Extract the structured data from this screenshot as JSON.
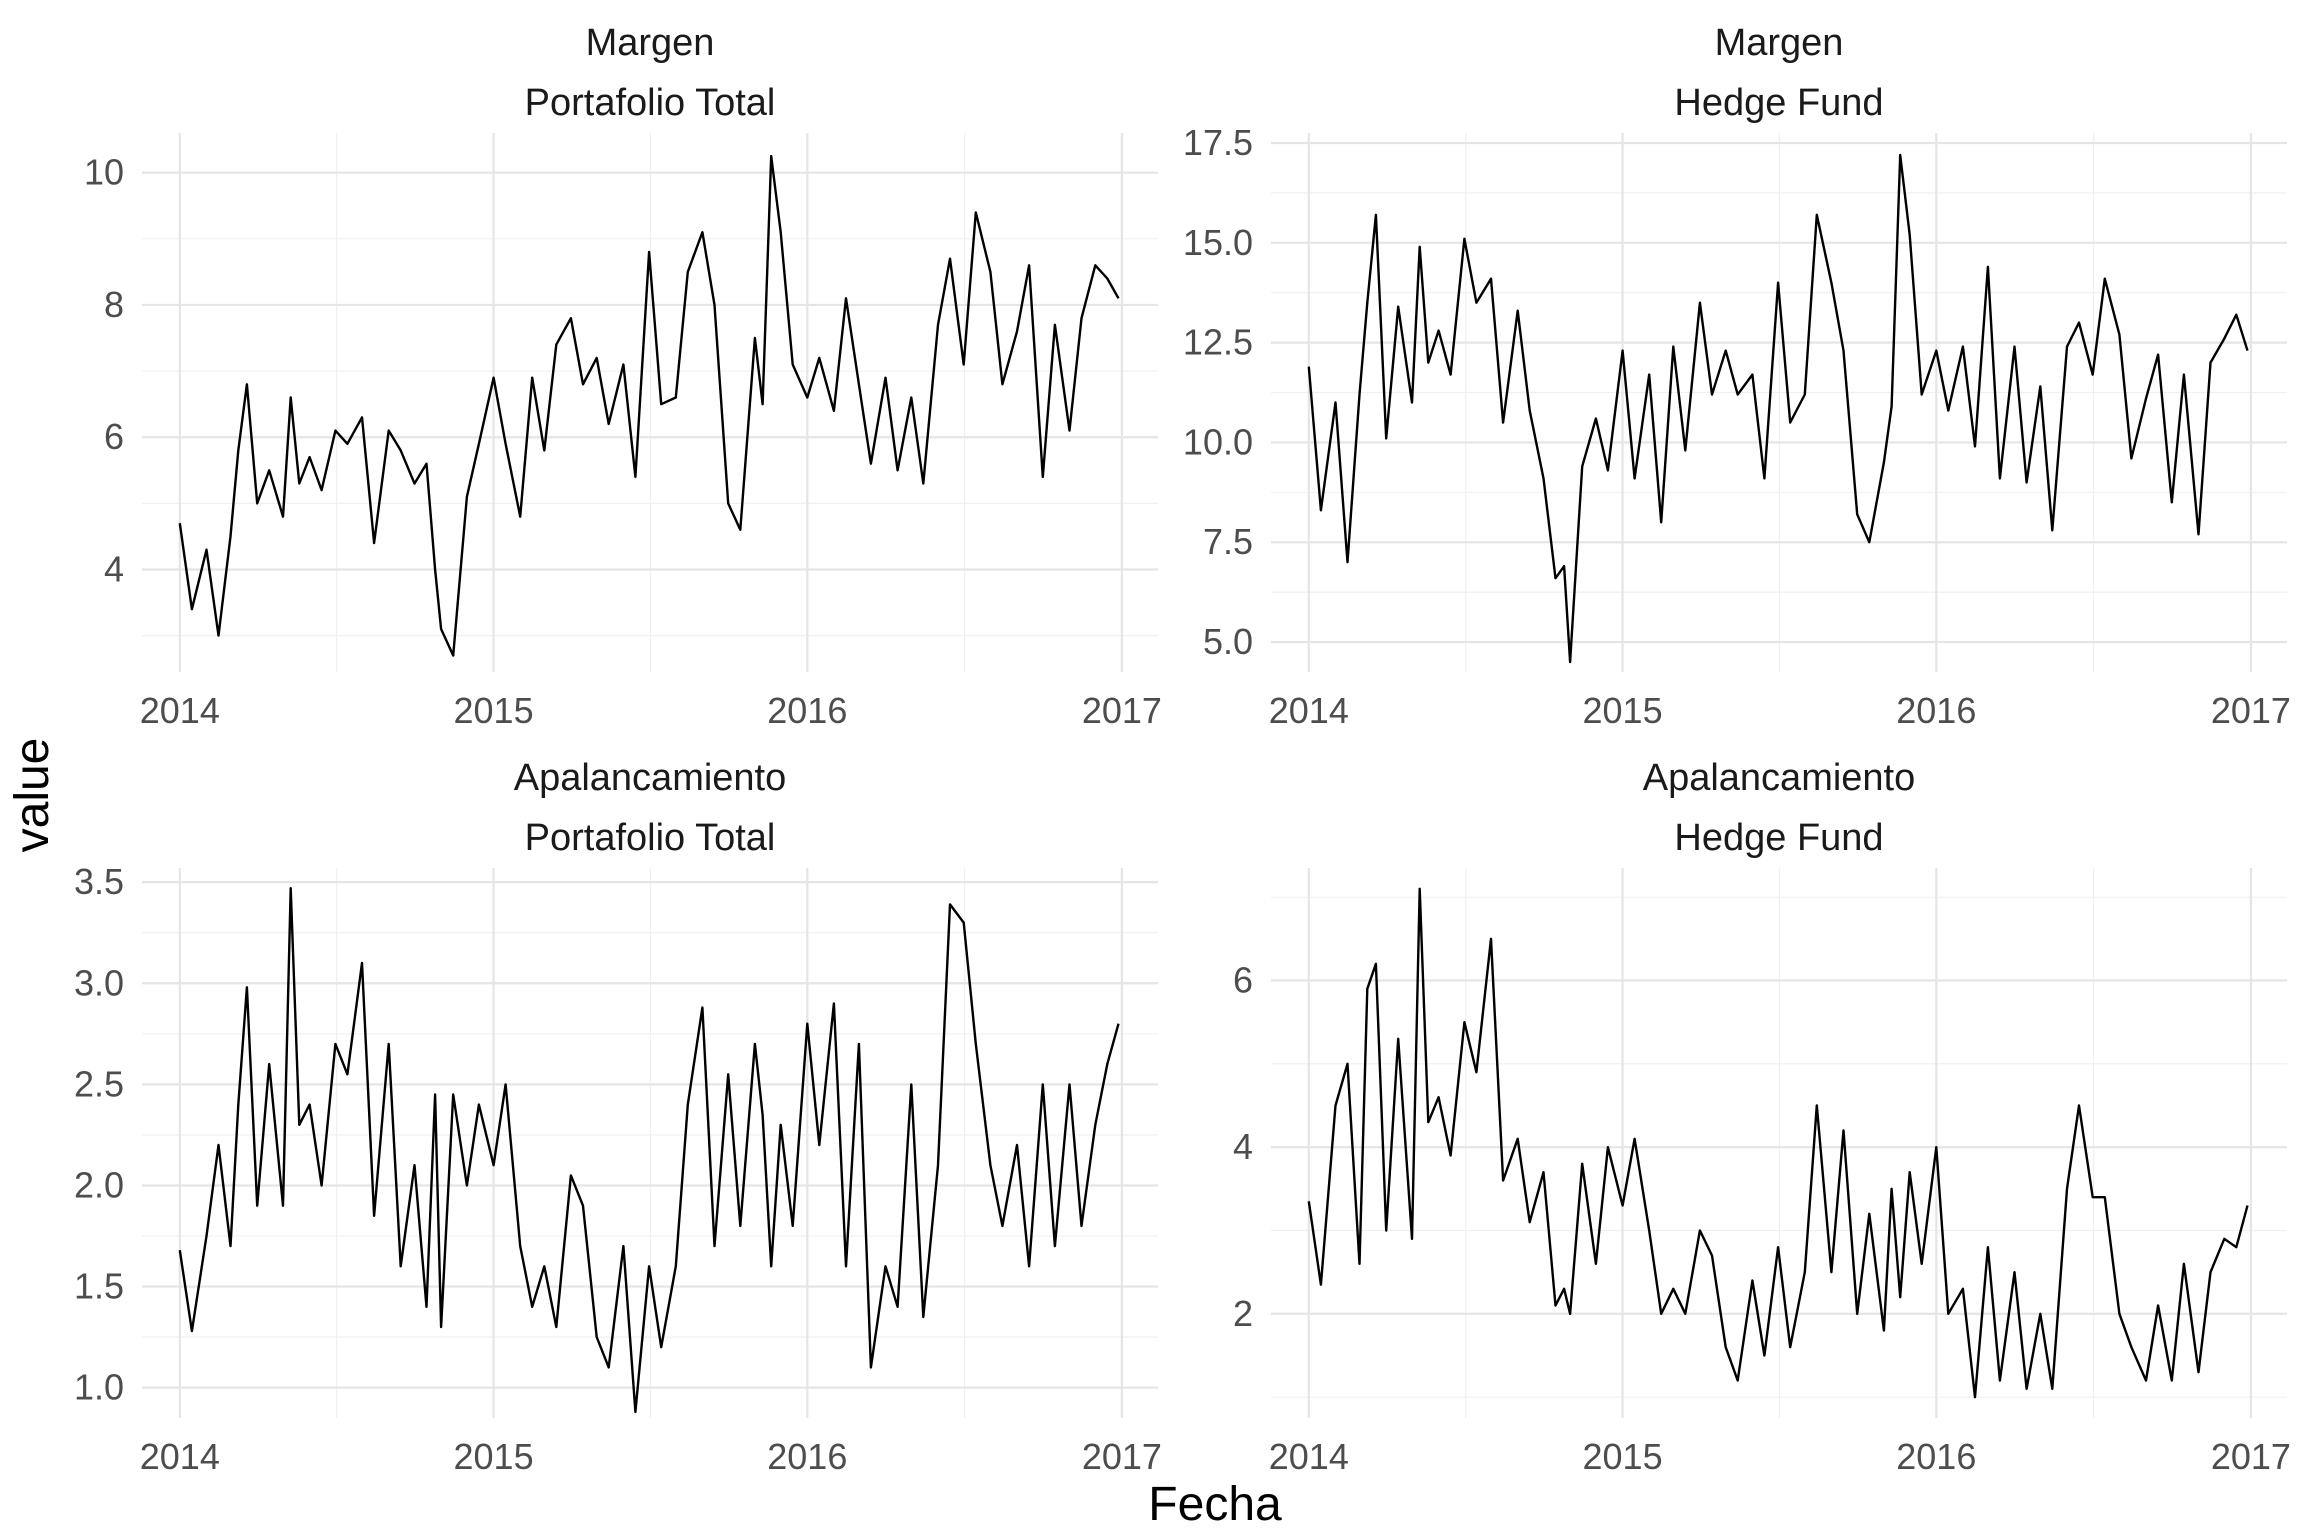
{
  "chart_data": {
    "type": "line",
    "xlabel": "Fecha",
    "ylabel": "value",
    "grid": true,
    "panels": [
      {
        "strip": [
          "Margen",
          "Portafolio Total"
        ],
        "xlim": [
          "2013-11-18",
          "2017-02-12"
        ],
        "ylim": [
          2.45,
          10.6
        ],
        "x_ticks": [
          "2014",
          "2015",
          "2016",
          "2017"
        ],
        "y_ticks": [
          4,
          6,
          8,
          10
        ],
        "y_tick_labels": [
          "4",
          "6",
          "8",
          "10"
        ],
        "series": [
          {
            "x": [
              "2014-01-01",
              "2014-01-15",
              "2014-02-01",
              "2014-02-15",
              "2014-03-01",
              "2014-03-10",
              "2014-03-20",
              "2014-04-01",
              "2014-04-15",
              "2014-05-01",
              "2014-05-10",
              "2014-05-20",
              "2014-06-01",
              "2014-06-15",
              "2014-07-01",
              "2014-07-15",
              "2014-08-01",
              "2014-08-15",
              "2014-09-01",
              "2014-09-15",
              "2014-10-01",
              "2014-10-15",
              "2014-10-25",
              "2014-11-01",
              "2014-11-15",
              "2014-12-01",
              "2014-12-15",
              "2015-01-01",
              "2015-01-15",
              "2015-02-01",
              "2015-02-15",
              "2015-03-01",
              "2015-03-15",
              "2015-04-01",
              "2015-04-15",
              "2015-05-01",
              "2015-05-15",
              "2015-06-01",
              "2015-06-15",
              "2015-07-01",
              "2015-07-15",
              "2015-08-01",
              "2015-08-15",
              "2015-09-01",
              "2015-09-15",
              "2015-10-01",
              "2015-10-15",
              "2015-11-01",
              "2015-11-10",
              "2015-11-20",
              "2015-12-01",
              "2015-12-15",
              "2016-01-01",
              "2016-01-15",
              "2016-02-01",
              "2016-02-15",
              "2016-03-01",
              "2016-03-15",
              "2016-04-01",
              "2016-04-15",
              "2016-05-01",
              "2016-05-15",
              "2016-06-01",
              "2016-06-15",
              "2016-07-01",
              "2016-07-15",
              "2016-08-01",
              "2016-08-15",
              "2016-09-01",
              "2016-09-15",
              "2016-10-01",
              "2016-10-15",
              "2016-11-01",
              "2016-11-15",
              "2016-12-01",
              "2016-12-15",
              "2016-12-28"
            ],
            "y": [
              4.7,
              3.4,
              4.3,
              3.0,
              4.5,
              5.8,
              6.8,
              5.0,
              5.5,
              4.8,
              6.6,
              5.3,
              5.7,
              5.2,
              6.1,
              5.9,
              6.3,
              4.4,
              6.1,
              5.8,
              5.3,
              5.6,
              4.0,
              3.1,
              2.7,
              5.1,
              5.9,
              6.9,
              5.9,
              4.8,
              6.9,
              5.8,
              7.4,
              7.8,
              6.8,
              7.2,
              6.2,
              7.1,
              5.4,
              8.8,
              6.5,
              6.6,
              8.5,
              9.1,
              8.0,
              5.0,
              4.6,
              7.5,
              6.5,
              10.25,
              9.1,
              7.1,
              6.6,
              7.2,
              6.4,
              8.1,
              6.8,
              5.6,
              6.9,
              5.5,
              6.6,
              5.3,
              7.7,
              8.7,
              7.1,
              9.4,
              8.5,
              6.8,
              7.6,
              8.6,
              5.4,
              7.7,
              6.1,
              7.8,
              8.6,
              8.4,
              8.1
            ]
          }
        ]
      },
      {
        "strip": [
          "Margen",
          "Hedge Fund"
        ],
        "xlim": [
          "2013-11-18",
          "2017-02-12"
        ],
        "ylim": [
          4.25,
          17.75
        ],
        "x_ticks": [
          "2014",
          "2015",
          "2016",
          "2017"
        ],
        "y_ticks": [
          5,
          7.5,
          10,
          12.5,
          15,
          17.5
        ],
        "y_tick_labels": [
          "5.0",
          "7.5",
          "10.0",
          "12.5",
          "15.0",
          "17.5"
        ],
        "series": [
          {
            "x": [
              "2014-01-01",
              "2014-01-15",
              "2014-02-01",
              "2014-02-15",
              "2014-03-01",
              "2014-03-10",
              "2014-03-20",
              "2014-04-01",
              "2014-04-15",
              "2014-05-01",
              "2014-05-10",
              "2014-05-20",
              "2014-06-01",
              "2014-06-15",
              "2014-07-01",
              "2014-07-15",
              "2014-08-01",
              "2014-08-15",
              "2014-09-01",
              "2014-09-15",
              "2014-10-01",
              "2014-10-15",
              "2014-10-25",
              "2014-11-01",
              "2014-11-15",
              "2014-12-01",
              "2014-12-15",
              "2015-01-01",
              "2015-01-15",
              "2015-02-01",
              "2015-02-15",
              "2015-03-01",
              "2015-03-15",
              "2015-04-01",
              "2015-04-15",
              "2015-05-01",
              "2015-05-15",
              "2015-06-01",
              "2015-06-15",
              "2015-07-01",
              "2015-07-15",
              "2015-08-01",
              "2015-08-15",
              "2015-09-01",
              "2015-09-15",
              "2015-10-01",
              "2015-10-15",
              "2015-11-01",
              "2015-11-10",
              "2015-11-20",
              "2015-12-01",
              "2015-12-15",
              "2016-01-01",
              "2016-01-15",
              "2016-02-01",
              "2016-02-15",
              "2016-03-01",
              "2016-03-15",
              "2016-04-01",
              "2016-04-15",
              "2016-05-01",
              "2016-05-15",
              "2016-06-01",
              "2016-06-15",
              "2016-07-01",
              "2016-07-15",
              "2016-08-01",
              "2016-08-15",
              "2016-09-01",
              "2016-09-15",
              "2016-10-01",
              "2016-10-15",
              "2016-11-01",
              "2016-11-15",
              "2016-12-01",
              "2016-12-15",
              "2016-12-28"
            ],
            "y": [
              11.9,
              8.3,
              11.0,
              7.0,
              11.2,
              13.5,
              15.7,
              10.1,
              13.4,
              11.0,
              14.9,
              12.0,
              12.8,
              11.7,
              15.1,
              13.5,
              14.1,
              10.5,
              13.3,
              10.8,
              9.1,
              6.6,
              6.9,
              4.5,
              9.4,
              10.6,
              9.3,
              12.3,
              9.1,
              11.7,
              8.0,
              12.4,
              9.8,
              13.5,
              11.2,
              12.3,
              11.2,
              11.7,
              9.1,
              14.0,
              10.5,
              11.2,
              15.7,
              14.0,
              12.3,
              8.2,
              7.5,
              9.5,
              10.9,
              17.2,
              15.2,
              11.2,
              12.3,
              10.8,
              12.4,
              9.9,
              14.4,
              9.1,
              12.4,
              9.0,
              11.4,
              7.8,
              12.4,
              13.0,
              11.7,
              14.1,
              12.7,
              9.6,
              11.1,
              12.2,
              8.5,
              11.7,
              7.7,
              12.0,
              12.6,
              13.2,
              12.3
            ]
          }
        ]
      },
      {
        "strip": [
          "Apalancamiento",
          "Portafolio Total"
        ],
        "xlim": [
          "2013-11-18",
          "2017-02-12"
        ],
        "ylim": [
          0.85,
          3.57
        ],
        "x_ticks": [
          "2014",
          "2015",
          "2016",
          "2017"
        ],
        "y_ticks": [
          1.0,
          1.5,
          2.0,
          2.5,
          3.0,
          3.5
        ],
        "y_tick_labels": [
          "1.0",
          "1.5",
          "2.0",
          "2.5",
          "3.0",
          "3.5"
        ],
        "series": [
          {
            "x": [
              "2014-01-01",
              "2014-01-15",
              "2014-02-01",
              "2014-02-15",
              "2014-03-01",
              "2014-03-10",
              "2014-03-20",
              "2014-04-01",
              "2014-04-15",
              "2014-05-01",
              "2014-05-10",
              "2014-05-20",
              "2014-06-01",
              "2014-06-15",
              "2014-07-01",
              "2014-07-15",
              "2014-08-01",
              "2014-08-15",
              "2014-09-01",
              "2014-09-15",
              "2014-10-01",
              "2014-10-15",
              "2014-10-25",
              "2014-11-01",
              "2014-11-15",
              "2014-12-01",
              "2014-12-15",
              "2015-01-01",
              "2015-01-15",
              "2015-02-01",
              "2015-02-15",
              "2015-03-01",
              "2015-03-15",
              "2015-04-01",
              "2015-04-15",
              "2015-05-01",
              "2015-05-15",
              "2015-06-01",
              "2015-06-15",
              "2015-07-01",
              "2015-07-15",
              "2015-08-01",
              "2015-08-15",
              "2015-09-01",
              "2015-09-15",
              "2015-10-01",
              "2015-10-15",
              "2015-11-01",
              "2015-11-10",
              "2015-11-20",
              "2015-12-01",
              "2015-12-15",
              "2016-01-01",
              "2016-01-15",
              "2016-02-01",
              "2016-02-15",
              "2016-03-01",
              "2016-03-15",
              "2016-04-01",
              "2016-04-15",
              "2016-05-01",
              "2016-05-15",
              "2016-06-01",
              "2016-06-15",
              "2016-07-01",
              "2016-07-15",
              "2016-08-01",
              "2016-08-15",
              "2016-09-01",
              "2016-09-15",
              "2016-10-01",
              "2016-10-15",
              "2016-11-01",
              "2016-11-15",
              "2016-12-01",
              "2016-12-15",
              "2016-12-28"
            ],
            "y": [
              1.68,
              1.28,
              1.75,
              2.2,
              1.7,
              2.4,
              2.98,
              1.9,
              2.6,
              1.9,
              3.47,
              2.3,
              2.4,
              2.0,
              2.7,
              2.55,
              3.1,
              1.85,
              2.7,
              1.6,
              2.1,
              1.4,
              2.45,
              1.3,
              2.45,
              2.0,
              2.4,
              2.1,
              2.5,
              1.7,
              1.4,
              1.6,
              1.3,
              2.05,
              1.9,
              1.25,
              1.1,
              1.7,
              0.88,
              1.6,
              1.2,
              1.6,
              2.4,
              2.88,
              1.7,
              2.55,
              1.8,
              2.7,
              2.35,
              1.6,
              2.3,
              1.8,
              2.8,
              2.2,
              2.9,
              1.6,
              2.7,
              1.1,
              1.6,
              1.4,
              2.5,
              1.35,
              2.1,
              3.39,
              3.3,
              2.7,
              2.1,
              1.8,
              2.2,
              1.6,
              2.5,
              1.7,
              2.5,
              1.8,
              2.3,
              2.6,
              2.8
            ]
          }
        ]
      },
      {
        "strip": [
          "Apalancamiento",
          "Hedge Fund"
        ],
        "xlim": [
          "2013-11-18",
          "2017-02-12"
        ],
        "ylim": [
          0.75,
          7.35
        ],
        "x_ticks": [
          "2014",
          "2015",
          "2016",
          "2017"
        ],
        "y_ticks": [
          2,
          4,
          6
        ],
        "y_tick_labels": [
          "2",
          "4",
          "6"
        ],
        "series": [
          {
            "x": [
              "2014-01-01",
              "2014-01-15",
              "2014-02-01",
              "2014-02-15",
              "2014-03-01",
              "2014-03-10",
              "2014-03-20",
              "2014-04-01",
              "2014-04-15",
              "2014-05-01",
              "2014-05-10",
              "2014-05-20",
              "2014-06-01",
              "2014-06-15",
              "2014-07-01",
              "2014-07-15",
              "2014-08-01",
              "2014-08-15",
              "2014-09-01",
              "2014-09-15",
              "2014-10-01",
              "2014-10-15",
              "2014-10-25",
              "2014-11-01",
              "2014-11-15",
              "2014-12-01",
              "2014-12-15",
              "2015-01-01",
              "2015-01-15",
              "2015-02-01",
              "2015-02-15",
              "2015-03-01",
              "2015-03-15",
              "2015-04-01",
              "2015-04-15",
              "2015-05-01",
              "2015-05-15",
              "2015-06-01",
              "2015-06-15",
              "2015-07-01",
              "2015-07-15",
              "2015-08-01",
              "2015-08-15",
              "2015-09-01",
              "2015-09-15",
              "2015-10-01",
              "2015-10-15",
              "2015-11-01",
              "2015-11-10",
              "2015-11-20",
              "2015-12-01",
              "2015-12-15",
              "2016-01-01",
              "2016-01-15",
              "2016-02-01",
              "2016-02-15",
              "2016-03-01",
              "2016-03-15",
              "2016-04-01",
              "2016-04-15",
              "2016-05-01",
              "2016-05-15",
              "2016-06-01",
              "2016-06-15",
              "2016-07-01",
              "2016-07-15",
              "2016-08-01",
              "2016-08-15",
              "2016-09-01",
              "2016-09-15",
              "2016-10-01",
              "2016-10-15",
              "2016-11-01",
              "2016-11-15",
              "2016-12-01",
              "2016-12-15",
              "2016-12-28"
            ],
            "y": [
              3.35,
              2.35,
              4.5,
              5.0,
              2.6,
              5.9,
              6.2,
              3.0,
              5.3,
              2.9,
              7.1,
              4.3,
              4.6,
              3.9,
              5.5,
              4.9,
              6.5,
              3.6,
              4.1,
              3.1,
              3.7,
              2.1,
              2.3,
              2.0,
              3.8,
              2.6,
              4.0,
              3.3,
              4.1,
              3.0,
              2.0,
              2.3,
              2.0,
              3.0,
              2.7,
              1.6,
              1.2,
              2.4,
              1.5,
              2.8,
              1.6,
              2.5,
              4.5,
              2.5,
              4.2,
              2.0,
              3.2,
              1.8,
              3.5,
              2.2,
              3.7,
              2.6,
              4.0,
              2.0,
              2.3,
              1.0,
              2.8,
              1.2,
              2.5,
              1.1,
              2.0,
              1.1,
              3.5,
              4.5,
              3.4,
              3.4,
              2.0,
              1.6,
              1.2,
              2.1,
              1.2,
              2.6,
              1.3,
              2.5,
              2.9,
              2.8,
              3.3
            ]
          }
        ]
      }
    ]
  }
}
